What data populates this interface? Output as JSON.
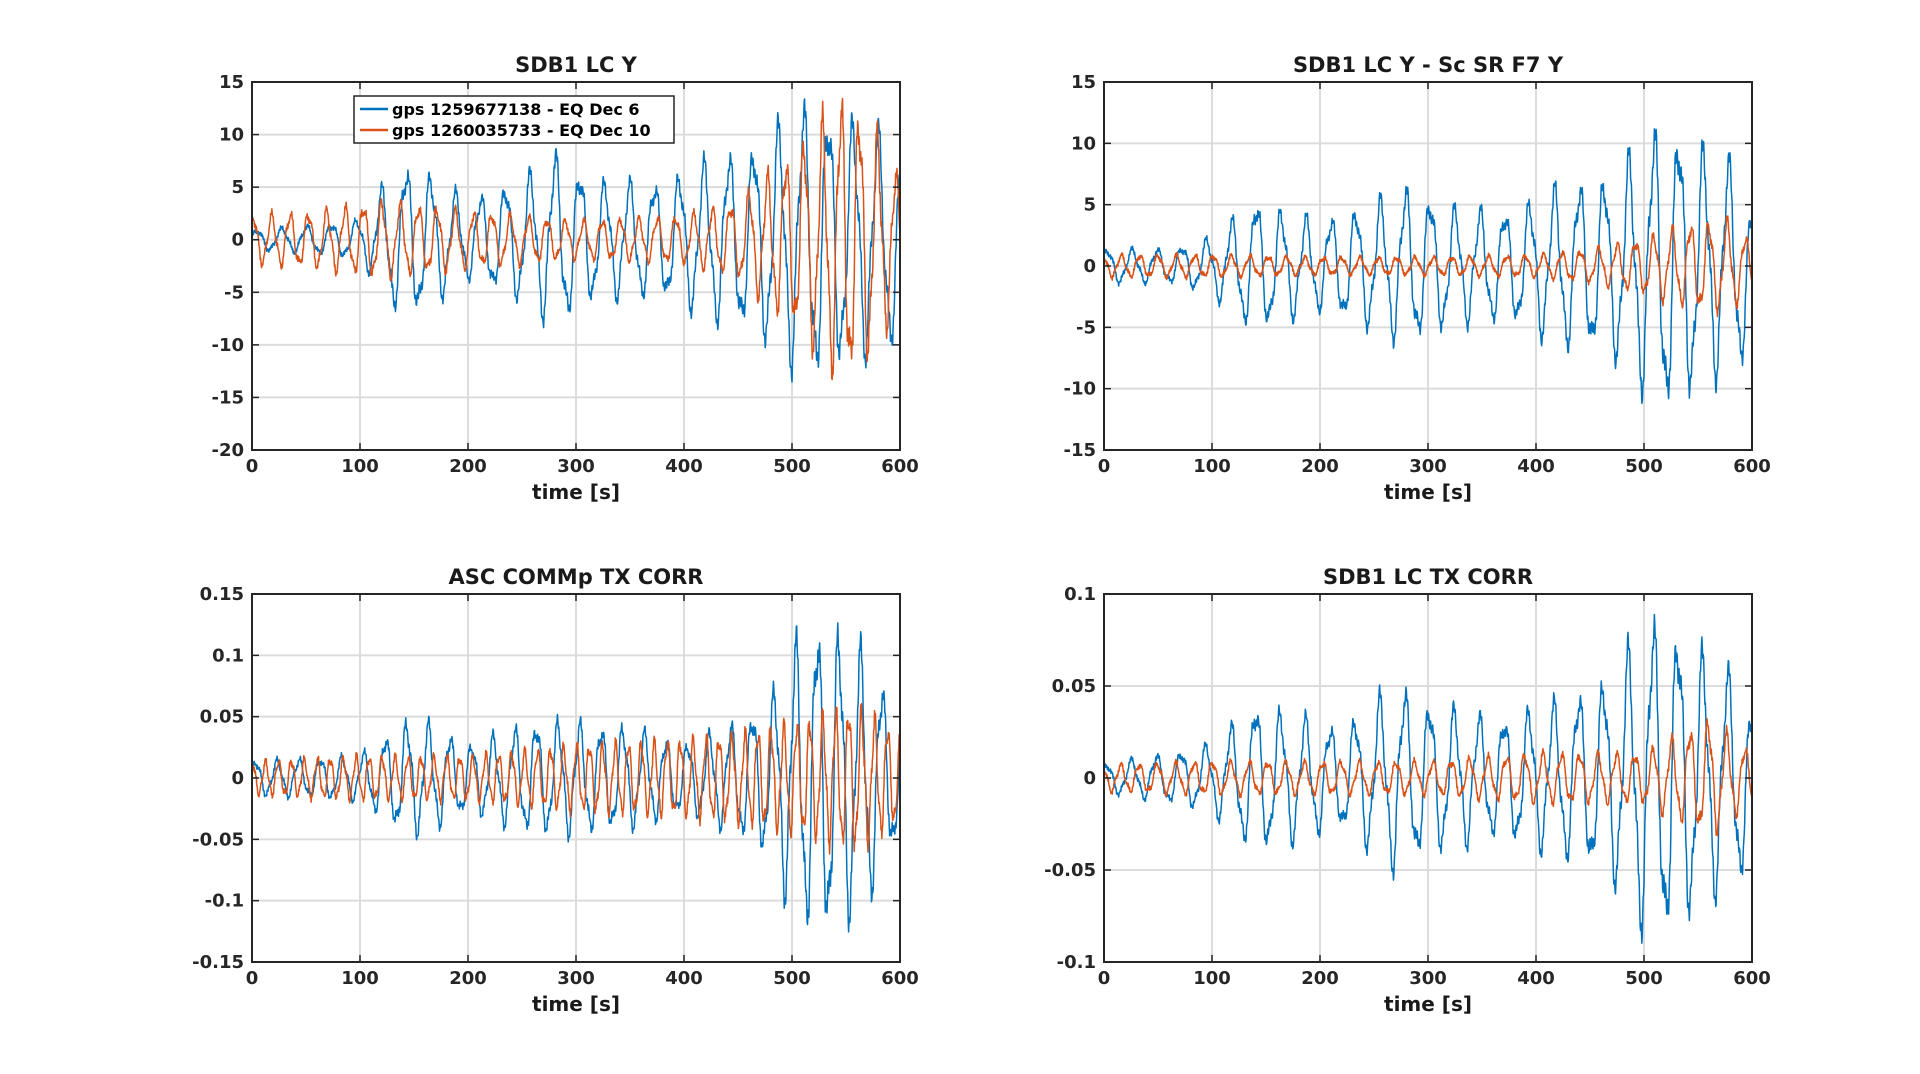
{
  "colors": {
    "series_1": "#0072BD",
    "series_2": "#D95319",
    "grid": "#dcdcdc",
    "axes": "#262626"
  },
  "legend": {
    "placement": "top-left",
    "entries": [
      "gps 1259677138 - EQ Dec 6",
      "gps 1260035733 - EQ Dec 10"
    ]
  },
  "chart_data": [
    {
      "type": "line",
      "title": "SDB1 LC Y",
      "xlabel": "time [s]",
      "ylabel": "",
      "xlim": [
        0,
        600
      ],
      "ylim": [
        -20,
        15
      ],
      "xticks": [
        0,
        100,
        200,
        300,
        400,
        500,
        600
      ],
      "yticks": [
        -20,
        -15,
        -10,
        -5,
        0,
        5,
        10,
        15
      ],
      "grid": true,
      "series": [
        {
          "name": "gps 1259677138 - EQ Dec 6",
          "color": "#0072BD",
          "envelope": [
            [
              0,
              1
            ],
            [
              60,
              1.5
            ],
            [
              100,
              2
            ],
            [
              130,
              7
            ],
            [
              150,
              8
            ],
            [
              200,
              4
            ],
            [
              260,
              7
            ],
            [
              280,
              9
            ],
            [
              320,
              6
            ],
            [
              380,
              6
            ],
            [
              420,
              8
            ],
            [
              470,
              10
            ],
            [
              500,
              13
            ],
            [
              520,
              14
            ],
            [
              560,
              12
            ],
            [
              590,
              11
            ],
            [
              600,
              10
            ]
          ],
          "period_s": 23,
          "phase": 0.3
        },
        {
          "name": "gps 1260035733 - EQ Dec 10",
          "color": "#D95319",
          "envelope": [
            [
              0,
              2.5
            ],
            [
              60,
              3
            ],
            [
              120,
              4
            ],
            [
              200,
              3
            ],
            [
              300,
              2
            ],
            [
              400,
              2.5
            ],
            [
              450,
              4
            ],
            [
              500,
              9
            ],
            [
              550,
              15
            ],
            [
              580,
              11
            ],
            [
              600,
              6
            ]
          ],
          "period_s": 17,
          "phase": 1.1
        }
      ]
    },
    {
      "type": "line",
      "title": "SDB1 LC Y - Sc SR F7 Y",
      "xlabel": "time [s]",
      "ylabel": "",
      "xlim": [
        0,
        600
      ],
      "ylim": [
        -15,
        15
      ],
      "xticks": [
        0,
        100,
        200,
        300,
        400,
        500,
        600
      ],
      "yticks": [
        -15,
        -10,
        -5,
        0,
        5,
        10,
        15
      ],
      "grid": true,
      "series": [
        {
          "name": "gps 1259677138 - EQ Dec 6",
          "color": "#0072BD",
          "envelope": [
            [
              0,
              1.5
            ],
            [
              60,
              1.5
            ],
            [
              100,
              2.5
            ],
            [
              140,
              6
            ],
            [
              160,
              5
            ],
            [
              200,
              4
            ],
            [
              260,
              6
            ],
            [
              280,
              7
            ],
            [
              330,
              5
            ],
            [
              380,
              5
            ],
            [
              420,
              7
            ],
            [
              470,
              8
            ],
            [
              500,
              11
            ],
            [
              520,
              13
            ],
            [
              560,
              10
            ],
            [
              590,
              9
            ],
            [
              600,
              5
            ]
          ],
          "period_s": 23,
          "phase": 0.7
        },
        {
          "name": "gps 1260035733 - EQ Dec 10",
          "color": "#D95319",
          "envelope": [
            [
              0,
              1
            ],
            [
              100,
              1
            ],
            [
              200,
              0.8
            ],
            [
              300,
              0.8
            ],
            [
              400,
              1
            ],
            [
              450,
              1.5
            ],
            [
              500,
              2.5
            ],
            [
              550,
              4
            ],
            [
              580,
              4
            ],
            [
              600,
              2
            ]
          ],
          "period_s": 17,
          "phase": 1.9
        }
      ]
    },
    {
      "type": "line",
      "title": "ASC COMMp TX CORR",
      "xlabel": "time [s]",
      "ylabel": "",
      "xlim": [
        0,
        600
      ],
      "ylim": [
        -0.15,
        0.15
      ],
      "xticks": [
        0,
        100,
        200,
        300,
        400,
        500,
        600
      ],
      "yticks": [
        -0.15,
        -0.1,
        -0.05,
        0,
        0.05,
        0.1,
        0.15
      ],
      "grid": true,
      "series": [
        {
          "name": "gps 1259677138 - EQ Dec 6",
          "color": "#0072BD",
          "envelope": [
            [
              0,
              0.015
            ],
            [
              100,
              0.02
            ],
            [
              140,
              0.05
            ],
            [
              160,
              0.05
            ],
            [
              200,
              0.03
            ],
            [
              260,
              0.05
            ],
            [
              290,
              0.05
            ],
            [
              350,
              0.045
            ],
            [
              400,
              0.03
            ],
            [
              450,
              0.05
            ],
            [
              480,
              0.07
            ],
            [
              500,
              0.12
            ],
            [
              530,
              0.14
            ],
            [
              570,
              0.11
            ],
            [
              600,
              0.05
            ]
          ],
          "period_s": 20,
          "phase": 0.5
        },
        {
          "name": "gps 1260035733 - EQ Dec 10",
          "color": "#D95319",
          "envelope": [
            [
              0,
              0.015
            ],
            [
              100,
              0.02
            ],
            [
              200,
              0.02
            ],
            [
              300,
              0.03
            ],
            [
              400,
              0.035
            ],
            [
              450,
              0.04
            ],
            [
              500,
              0.05
            ],
            [
              560,
              0.065
            ],
            [
              600,
              0.04
            ]
          ],
          "period_s": 12,
          "phase": 1.3
        }
      ]
    },
    {
      "type": "line",
      "title": "SDB1 LC TX CORR",
      "xlabel": "time [s]",
      "ylabel": "",
      "xlim": [
        0,
        600
      ],
      "ylim": [
        -0.1,
        0.1
      ],
      "xticks": [
        0,
        100,
        200,
        300,
        400,
        500,
        600
      ],
      "yticks": [
        -0.1,
        -0.05,
        0,
        0.05,
        0.1
      ],
      "grid": true,
      "series": [
        {
          "name": "gps 1259677138 - EQ Dec 6",
          "color": "#0072BD",
          "envelope": [
            [
              0,
              0.008
            ],
            [
              60,
              0.015
            ],
            [
              100,
              0.02
            ],
            [
              140,
              0.045
            ],
            [
              160,
              0.04
            ],
            [
              220,
              0.03
            ],
            [
              270,
              0.055
            ],
            [
              300,
              0.045
            ],
            [
              360,
              0.035
            ],
            [
              420,
              0.045
            ],
            [
              470,
              0.06
            ],
            [
              500,
              0.09
            ],
            [
              520,
              0.095
            ],
            [
              560,
              0.07
            ],
            [
              590,
              0.06
            ],
            [
              600,
              0.04
            ]
          ],
          "period_s": 23,
          "phase": 0.9
        },
        {
          "name": "gps 1260035733 - EQ Dec 10",
          "color": "#D95319",
          "envelope": [
            [
              0,
              0.008
            ],
            [
              100,
              0.01
            ],
            [
              200,
              0.01
            ],
            [
              300,
              0.01
            ],
            [
              400,
              0.015
            ],
            [
              450,
              0.015
            ],
            [
              500,
              0.015
            ],
            [
              560,
              0.035
            ],
            [
              600,
              0.015
            ]
          ],
          "period_s": 17,
          "phase": 2.1
        }
      ]
    }
  ]
}
